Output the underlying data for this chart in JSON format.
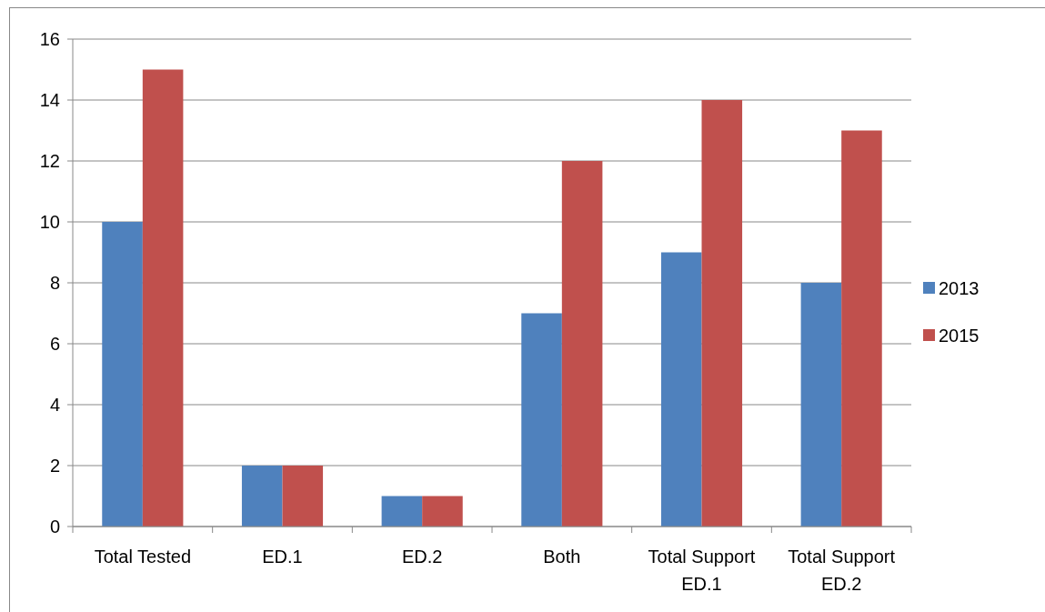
{
  "chart_data": {
    "type": "bar",
    "categories": [
      "Total Tested",
      "ED.1",
      "ED.2",
      "Both",
      "Total Support ED.1",
      "Total Support ED.2"
    ],
    "series": [
      {
        "name": "2013",
        "color": "#4f81bd",
        "values": [
          10,
          2,
          1,
          7,
          9,
          8
        ]
      },
      {
        "name": "2015",
        "color": "#c0504d",
        "values": [
          15,
          2,
          1,
          12,
          14,
          13
        ]
      }
    ],
    "ylim": [
      0,
      16
    ],
    "yticks": [
      0,
      2,
      4,
      6,
      8,
      10,
      12,
      14,
      16
    ],
    "grid": "y",
    "legend": "right"
  }
}
